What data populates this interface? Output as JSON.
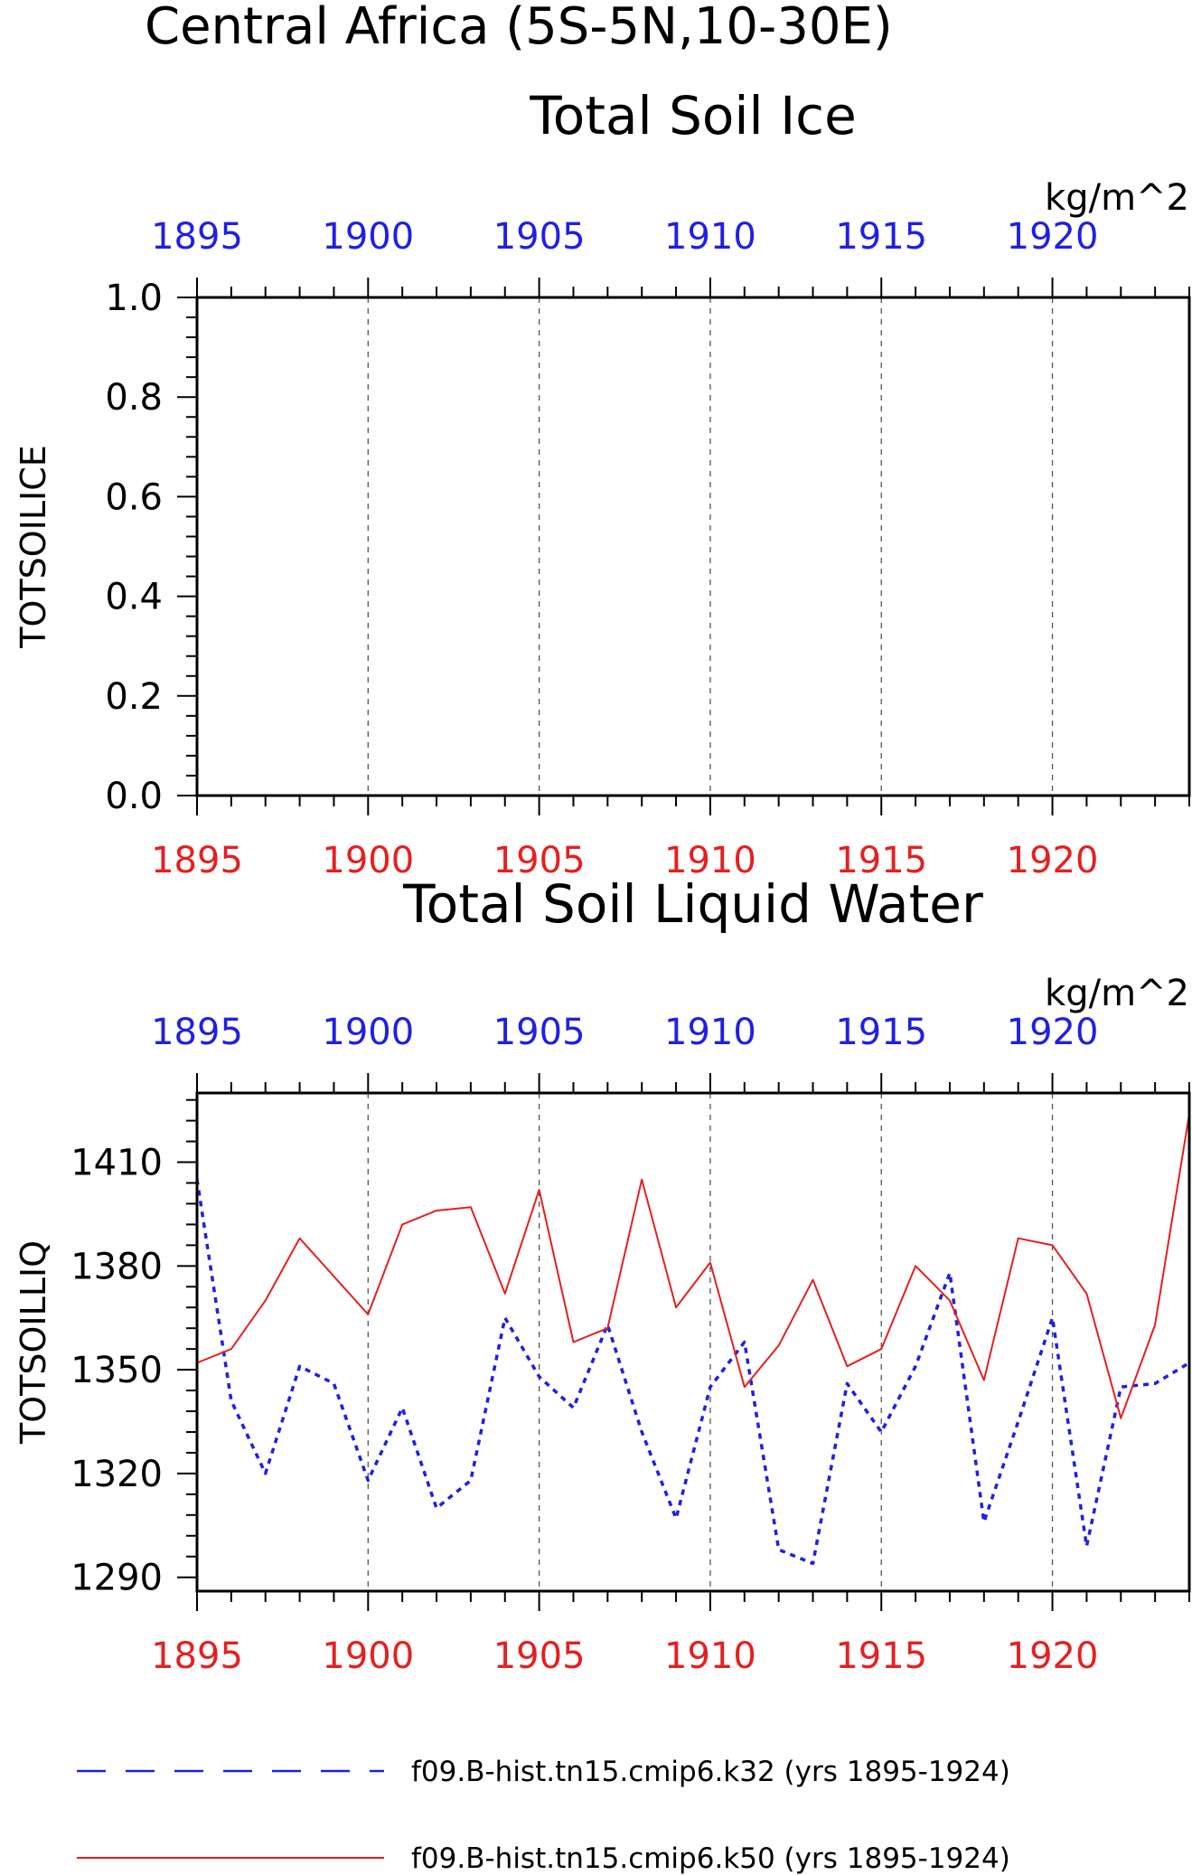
{
  "figure": {
    "title": "Central Africa (5S-5N,10-30E)",
    "colors": {
      "series1": "#1f1fe6",
      "series2": "#e61f1f",
      "axis": "#000000",
      "grid": "#555555"
    }
  },
  "legend": {
    "items": [
      {
        "label": "f09.B-hist.tn15.cmip6.k32 (yrs 1895-1924)",
        "color": "#1f1fe6",
        "dash": "dashed"
      },
      {
        "label": "f09.B-hist.tn15.cmip6.k50 (yrs 1895-1924)",
        "color": "#e61f1f",
        "dash": "solid"
      }
    ]
  },
  "chart_data": [
    {
      "type": "line",
      "title": "Total Soil Ice",
      "units": "kg/m^2",
      "ylabel": "TOTSOILICE",
      "xlim": [
        1895,
        1924
      ],
      "ylim": [
        0,
        1
      ],
      "xticks": [
        "1895",
        "1900",
        "1905",
        "1910",
        "1915",
        "1920"
      ],
      "yticks": [
        "0.0",
        "0.2",
        "0.4",
        "0.6",
        "0.8",
        "1.0"
      ],
      "grid": "vertical dashed at major x ticks",
      "series": []
    },
    {
      "type": "line",
      "title": "Total Soil Liquid Water",
      "units": "kg/m^2",
      "ylabel": "TOTSOILLIQ",
      "xlim": [
        1895,
        1924
      ],
      "ylim": [
        1286,
        1430
      ],
      "xticks": [
        "1895",
        "1900",
        "1905",
        "1910",
        "1915",
        "1920"
      ],
      "yticks": [
        "1290",
        "1320",
        "1350",
        "1380",
        "1410"
      ],
      "grid": "vertical dashed at major x ticks",
      "series": [
        {
          "x": [
            1895,
            1896,
            1897,
            1898,
            1899,
            1900,
            1901,
            1902,
            1903,
            1904,
            1905,
            1906,
            1907,
            1908,
            1909,
            1910,
            1911,
            1912,
            1913,
            1914,
            1915,
            1916,
            1917,
            1918,
            1919,
            1920,
            1921,
            1922,
            1923,
            1924
          ],
          "values": [
            1405,
            1341,
            1320,
            1351,
            1346,
            1318,
            1339,
            1310,
            1318,
            1365,
            1348,
            1339,
            1363,
            1332,
            1307,
            1345,
            1358,
            1298,
            1294,
            1346,
            1332,
            1351,
            1378,
            1306,
            1335,
            1365,
            1299,
            1345,
            1346,
            1352
          ]
        },
        {
          "x": [
            1895,
            1896,
            1897,
            1898,
            1899,
            1900,
            1901,
            1902,
            1903,
            1904,
            1905,
            1906,
            1907,
            1908,
            1909,
            1910,
            1911,
            1912,
            1913,
            1914,
            1915,
            1916,
            1917,
            1918,
            1919,
            1920,
            1921,
            1922,
            1923,
            1924
          ],
          "values": [
            1352,
            1356,
            1370,
            1388,
            1377,
            1366,
            1392,
            1396,
            1397,
            1372,
            1402,
            1358,
            1362,
            1405,
            1368,
            1381,
            1345,
            1357,
            1376,
            1351,
            1356,
            1380,
            1370,
            1347,
            1388,
            1386,
            1372,
            1336,
            1363,
            1424
          ]
        }
      ]
    }
  ]
}
